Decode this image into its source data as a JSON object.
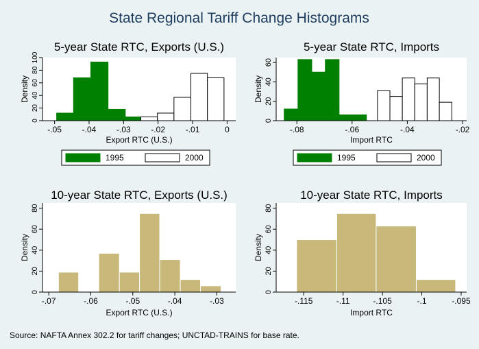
{
  "figure": {
    "title": "State Regional Tariff Change Histograms",
    "source": "Source: NAFTA Annex 302.2 for tariff changes; UNCTAD-TRAINS for base rate.",
    "colors": {
      "background": "#eaf2f3",
      "title": "#1e3d5e",
      "green": "#008000",
      "olive": "#c8b97a",
      "white": "#ffffff",
      "axis": "#000000"
    }
  },
  "chart_data": [
    {
      "id": "p1",
      "type": "histogram",
      "title": "5-year State RTC, Exports (U.S.)",
      "xlabel": "Export RTC (U.S.)",
      "ylabel": "Density",
      "xlim": [
        -0.0535,
        0.0025
      ],
      "ylim": [
        0,
        100
      ],
      "xticks": [
        -0.05,
        -0.04,
        -0.03,
        -0.02,
        -0.01,
        0
      ],
      "xtick_labels": [
        "-.05",
        "-.04",
        "-.03",
        "-.02",
        "-.01",
        "0"
      ],
      "yticks": [
        0,
        20,
        40,
        60,
        80,
        100
      ],
      "ytick_labels": [
        "0",
        "20",
        "40",
        "60",
        "80",
        "100"
      ],
      "legend": [
        "1995",
        "2000"
      ],
      "legend_position": "bottom",
      "series": [
        {
          "name": "1995",
          "color": "#008000",
          "stroke": "#008000",
          "bins": [
            {
              "x0": -0.0494,
              "x1": -0.0445,
              "y": 12
            },
            {
              "x0": -0.0445,
              "x1": -0.0395,
              "y": 68
            },
            {
              "x0": -0.0395,
              "x1": -0.0345,
              "y": 93
            },
            {
              "x0": -0.0345,
              "x1": -0.0295,
              "y": 18
            },
            {
              "x0": -0.0295,
              "x1": -0.0245,
              "y": 6
            }
          ]
        },
        {
          "name": "2000",
          "color": "#ffffff",
          "stroke": "#000000",
          "bins": [
            {
              "x0": -0.025,
              "x1": -0.0202,
              "y": 6
            },
            {
              "x0": -0.0202,
              "x1": -0.0154,
              "y": 12
            },
            {
              "x0": -0.0154,
              "x1": -0.0105,
              "y": 37
            },
            {
              "x0": -0.0105,
              "x1": -0.0057,
              "y": 75
            },
            {
              "x0": -0.0057,
              "x1": -0.0009,
              "y": 68
            }
          ]
        }
      ]
    },
    {
      "id": "p2",
      "type": "histogram",
      "title": "5-year State RTC, Imports",
      "xlabel": "Import RTC",
      "ylabel": "Density",
      "xlim": [
        -0.0875,
        -0.0185
      ],
      "ylim": [
        0,
        65
      ],
      "xticks": [
        -0.08,
        -0.06,
        -0.04,
        -0.02
      ],
      "xtick_labels": [
        "-.08",
        "-.06",
        "-.04",
        "-.02"
      ],
      "yticks": [
        0,
        20,
        40,
        60
      ],
      "ytick_labels": [
        "0",
        "20",
        "40",
        "60"
      ],
      "legend": [
        "1995",
        "2000"
      ],
      "legend_position": "bottom",
      "series": [
        {
          "name": "1995",
          "color": "#008000",
          "stroke": "#008000",
          "bins": [
            {
              "x0": -0.0846,
              "x1": -0.0796,
              "y": 12
            },
            {
              "x0": -0.0796,
              "x1": -0.0746,
              "y": 63
            },
            {
              "x0": -0.0746,
              "x1": -0.0697,
              "y": 50
            },
            {
              "x0": -0.0697,
              "x1": -0.0647,
              "y": 63
            },
            {
              "x0": -0.0647,
              "x1": -0.0548,
              "y": 6
            }
          ]
        },
        {
          "name": "2000",
          "color": "#ffffff",
          "stroke": "#000000",
          "bins": [
            {
              "x0": -0.0508,
              "x1": -0.0463,
              "y": 31
            },
            {
              "x0": -0.0463,
              "x1": -0.0418,
              "y": 25
            },
            {
              "x0": -0.0418,
              "x1": -0.0373,
              "y": 44
            },
            {
              "x0": -0.0373,
              "x1": -0.0328,
              "y": 38
            },
            {
              "x0": -0.0328,
              "x1": -0.0284,
              "y": 44
            },
            {
              "x0": -0.0284,
              "x1": -0.0239,
              "y": 19
            }
          ]
        }
      ]
    },
    {
      "id": "p3",
      "type": "histogram",
      "title": "10-year State RTC, Exports (U.S.)",
      "xlabel": "Export RTC (U.S.)",
      "ylabel": "Density",
      "xlim": [
        -0.0715,
        -0.0255
      ],
      "ylim": [
        0,
        85
      ],
      "xticks": [
        -0.07,
        -0.06,
        -0.05,
        -0.04,
        -0.03
      ],
      "xtick_labels": [
        "-.07",
        "-.06",
        "-.05",
        "-.04",
        "-.03"
      ],
      "yticks": [
        0,
        20,
        40,
        60,
        80
      ],
      "ytick_labels": [
        "0",
        "20",
        "40",
        "60",
        "80"
      ],
      "series": [
        {
          "name": "",
          "color": "#c8b97a",
          "stroke": "#ffffff",
          "bins": [
            {
              "x0": -0.0677,
              "x1": -0.0629,
              "y": 19
            },
            {
              "x0": -0.0629,
              "x1": -0.0581,
              "y": 0
            },
            {
              "x0": -0.0581,
              "x1": -0.0532,
              "y": 37
            },
            {
              "x0": -0.0532,
              "x1": -0.0484,
              "y": 19
            },
            {
              "x0": -0.0484,
              "x1": -0.0436,
              "y": 75
            },
            {
              "x0": -0.0436,
              "x1": -0.0387,
              "y": 31
            },
            {
              "x0": -0.0387,
              "x1": -0.0339,
              "y": 12
            },
            {
              "x0": -0.0339,
              "x1": -0.029,
              "y": 6
            }
          ]
        }
      ]
    },
    {
      "id": "p4",
      "type": "histogram",
      "title": "10-year State RTC, Imports",
      "xlabel": "Import RTC",
      "ylabel": "Density",
      "xlim": [
        -0.1185,
        -0.0943
      ],
      "ylim": [
        0,
        85
      ],
      "xticks": [
        -0.115,
        -0.11,
        -0.105,
        -0.1,
        -0.095
      ],
      "xtick_labels": [
        "-.115",
        "-.11",
        "-.105",
        "-.1",
        "-.095"
      ],
      "yticks": [
        0,
        20,
        40,
        60,
        80
      ],
      "ytick_labels": [
        "0",
        "20",
        "40",
        "60",
        "80"
      ],
      "series": [
        {
          "name": "",
          "color": "#c8b97a",
          "stroke": "#ffffff",
          "bins": [
            {
              "x0": -0.1159,
              "x1": -0.1108,
              "y": 50
            },
            {
              "x0": -0.1108,
              "x1": -0.1058,
              "y": 75
            },
            {
              "x0": -0.1058,
              "x1": -0.1007,
              "y": 63
            },
            {
              "x0": -0.1007,
              "x1": -0.0957,
              "y": 12
            }
          ]
        }
      ]
    }
  ]
}
